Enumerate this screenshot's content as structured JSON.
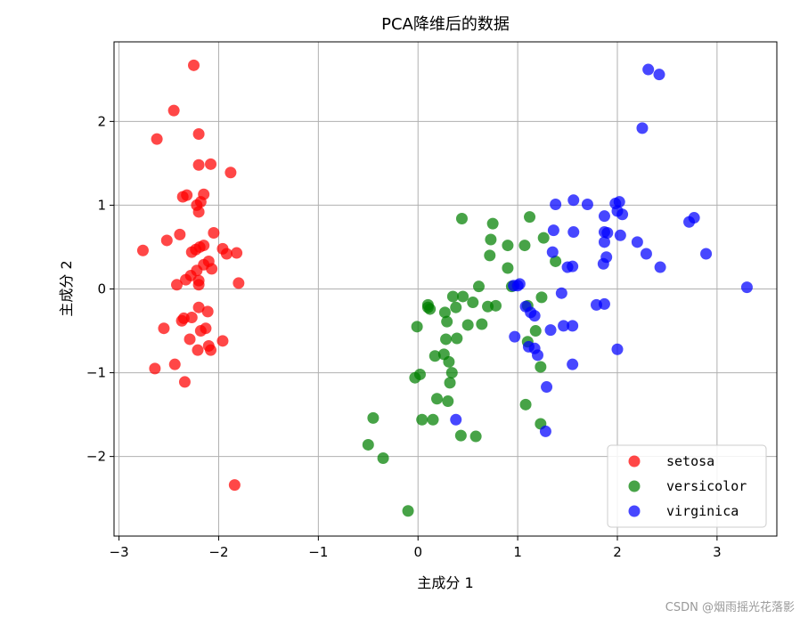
{
  "chart_data": {
    "type": "scatter",
    "title": "PCA降维后的数据",
    "xlabel": "主成分 1",
    "ylabel": "主成分 2",
    "xlim": [
      -3.05,
      3.6
    ],
    "ylim": [
      -2.95,
      2.95
    ],
    "xticks": [
      -3,
      -2,
      -1,
      0,
      1,
      2,
      3
    ],
    "yticks": [
      -2,
      -1,
      0,
      1,
      2
    ],
    "tick_labels": {
      "x": [
        "−3",
        "−2",
        "−1",
        "0",
        "1",
        "2",
        "3"
      ],
      "y": [
        "−2",
        "−1",
        "0",
        "1",
        "2"
      ]
    },
    "grid": true,
    "legend_position": "lower-right",
    "series": [
      {
        "name": "setosa",
        "color": "#ff0000",
        "points": [
          [
            -2.25,
            2.67
          ],
          [
            -2.45,
            2.13
          ],
          [
            -2.62,
            1.79
          ],
          [
            -2.2,
            1.85
          ],
          [
            -2.2,
            1.48
          ],
          [
            -2.08,
            1.49
          ],
          [
            -1.88,
            1.39
          ],
          [
            -2.36,
            1.1
          ],
          [
            -2.32,
            1.12
          ],
          [
            -2.15,
            1.13
          ],
          [
            -2.22,
            1.0
          ],
          [
            -2.18,
            1.04
          ],
          [
            -2.2,
            0.92
          ],
          [
            -2.05,
            0.67
          ],
          [
            -2.39,
            0.65
          ],
          [
            -2.52,
            0.58
          ],
          [
            -2.19,
            0.5
          ],
          [
            -2.15,
            0.52
          ],
          [
            -2.23,
            0.47
          ],
          [
            -2.27,
            0.44
          ],
          [
            -1.96,
            0.48
          ],
          [
            -1.92,
            0.42
          ],
          [
            -1.82,
            0.43
          ],
          [
            -2.76,
            0.46
          ],
          [
            -2.1,
            0.33
          ],
          [
            -2.15,
            0.29
          ],
          [
            -2.07,
            0.24
          ],
          [
            -2.22,
            0.22
          ],
          [
            -2.28,
            0.16
          ],
          [
            -2.33,
            0.11
          ],
          [
            -2.42,
            0.05
          ],
          [
            -2.2,
            0.05
          ],
          [
            -2.2,
            0.1
          ],
          [
            -1.8,
            0.07
          ],
          [
            -2.2,
            -0.22
          ],
          [
            -2.11,
            -0.27
          ],
          [
            -2.27,
            -0.34
          ],
          [
            -2.35,
            -0.35
          ],
          [
            -2.37,
            -0.38
          ],
          [
            -2.13,
            -0.47
          ],
          [
            -2.18,
            -0.5
          ],
          [
            -2.55,
            -0.47
          ],
          [
            -2.29,
            -0.6
          ],
          [
            -2.1,
            -0.68
          ],
          [
            -1.96,
            -0.62
          ],
          [
            -2.08,
            -0.73
          ],
          [
            -2.21,
            -0.73
          ],
          [
            -2.44,
            -0.9
          ],
          [
            -2.64,
            -0.95
          ],
          [
            -2.34,
            -1.11
          ],
          [
            -1.84,
            -2.34
          ]
        ]
      },
      {
        "name": "versicolor",
        "color": "#008000",
        "points": [
          [
            0.44,
            0.84
          ],
          [
            0.75,
            0.78
          ],
          [
            1.12,
            0.86
          ],
          [
            0.73,
            0.59
          ],
          [
            0.9,
            0.52
          ],
          [
            1.07,
            0.52
          ],
          [
            1.26,
            0.61
          ],
          [
            0.72,
            0.4
          ],
          [
            0.9,
            0.25
          ],
          [
            1.38,
            0.33
          ],
          [
            0.61,
            0.03
          ],
          [
            0.45,
            -0.09
          ],
          [
            0.35,
            -0.09
          ],
          [
            0.55,
            -0.16
          ],
          [
            0.7,
            -0.21
          ],
          [
            0.78,
            -0.2
          ],
          [
            0.94,
            0.03
          ],
          [
            1.24,
            -0.1
          ],
          [
            1.1,
            -0.2
          ],
          [
            0.1,
            -0.19
          ],
          [
            0.27,
            -0.28
          ],
          [
            0.29,
            -0.39
          ],
          [
            0.1,
            -0.22
          ],
          [
            0.12,
            -0.24
          ],
          [
            0.38,
            -0.22
          ],
          [
            0.5,
            -0.43
          ],
          [
            0.64,
            -0.42
          ],
          [
            -0.01,
            -0.45
          ],
          [
            0.28,
            -0.6
          ],
          [
            0.39,
            -0.59
          ],
          [
            1.18,
            -0.5
          ],
          [
            1.1,
            -0.63
          ],
          [
            1.23,
            -0.93
          ],
          [
            0.17,
            -0.8
          ],
          [
            0.26,
            -0.78
          ],
          [
            0.31,
            -0.87
          ],
          [
            0.34,
            -1.0
          ],
          [
            0.32,
            -1.12
          ],
          [
            -0.03,
            -1.06
          ],
          [
            0.02,
            -1.02
          ],
          [
            0.19,
            -1.31
          ],
          [
            0.3,
            -1.34
          ],
          [
            1.08,
            -1.38
          ],
          [
            -0.45,
            -1.54
          ],
          [
            0.04,
            -1.56
          ],
          [
            0.15,
            -1.56
          ],
          [
            -0.5,
            -1.86
          ],
          [
            -0.35,
            -2.02
          ],
          [
            0.43,
            -1.75
          ],
          [
            0.58,
            -1.76
          ],
          [
            1.23,
            -1.61
          ],
          [
            -0.1,
            -2.65
          ]
        ]
      },
      {
        "name": "virginica",
        "color": "#0000ff",
        "points": [
          [
            2.31,
            2.62
          ],
          [
            2.42,
            2.56
          ],
          [
            2.25,
            1.92
          ],
          [
            1.56,
            1.06
          ],
          [
            1.7,
            1.01
          ],
          [
            1.98,
            1.02
          ],
          [
            2.02,
            1.04
          ],
          [
            1.38,
            1.01
          ],
          [
            2.0,
            0.93
          ],
          [
            2.05,
            0.89
          ],
          [
            1.87,
            0.87
          ],
          [
            2.77,
            0.85
          ],
          [
            2.72,
            0.8
          ],
          [
            1.36,
            0.7
          ],
          [
            1.56,
            0.68
          ],
          [
            1.87,
            0.68
          ],
          [
            1.9,
            0.67
          ],
          [
            2.03,
            0.64
          ],
          [
            2.2,
            0.56
          ],
          [
            1.87,
            0.56
          ],
          [
            1.35,
            0.44
          ],
          [
            2.29,
            0.42
          ],
          [
            2.89,
            0.42
          ],
          [
            1.89,
            0.38
          ],
          [
            1.86,
            0.3
          ],
          [
            1.5,
            0.26
          ],
          [
            1.55,
            0.27
          ],
          [
            2.43,
            0.26
          ],
          [
            1.02,
            0.06
          ],
          [
            0.96,
            0.04
          ],
          [
            1.0,
            0.04
          ],
          [
            3.3,
            0.02
          ],
          [
            1.44,
            -0.05
          ],
          [
            1.08,
            -0.21
          ],
          [
            1.13,
            -0.28
          ],
          [
            1.17,
            -0.32
          ],
          [
            1.79,
            -0.19
          ],
          [
            1.87,
            -0.18
          ],
          [
            1.46,
            -0.44
          ],
          [
            1.55,
            -0.44
          ],
          [
            1.33,
            -0.49
          ],
          [
            0.97,
            -0.57
          ],
          [
            1.11,
            -0.69
          ],
          [
            1.17,
            -0.71
          ],
          [
            2.0,
            -0.72
          ],
          [
            1.2,
            -0.79
          ],
          [
            1.55,
            -0.9
          ],
          [
            1.29,
            -1.17
          ],
          [
            0.38,
            -1.56
          ],
          [
            1.28,
            -1.7
          ]
        ]
      }
    ]
  },
  "watermark": "CSDN @烟雨摇光花落影"
}
